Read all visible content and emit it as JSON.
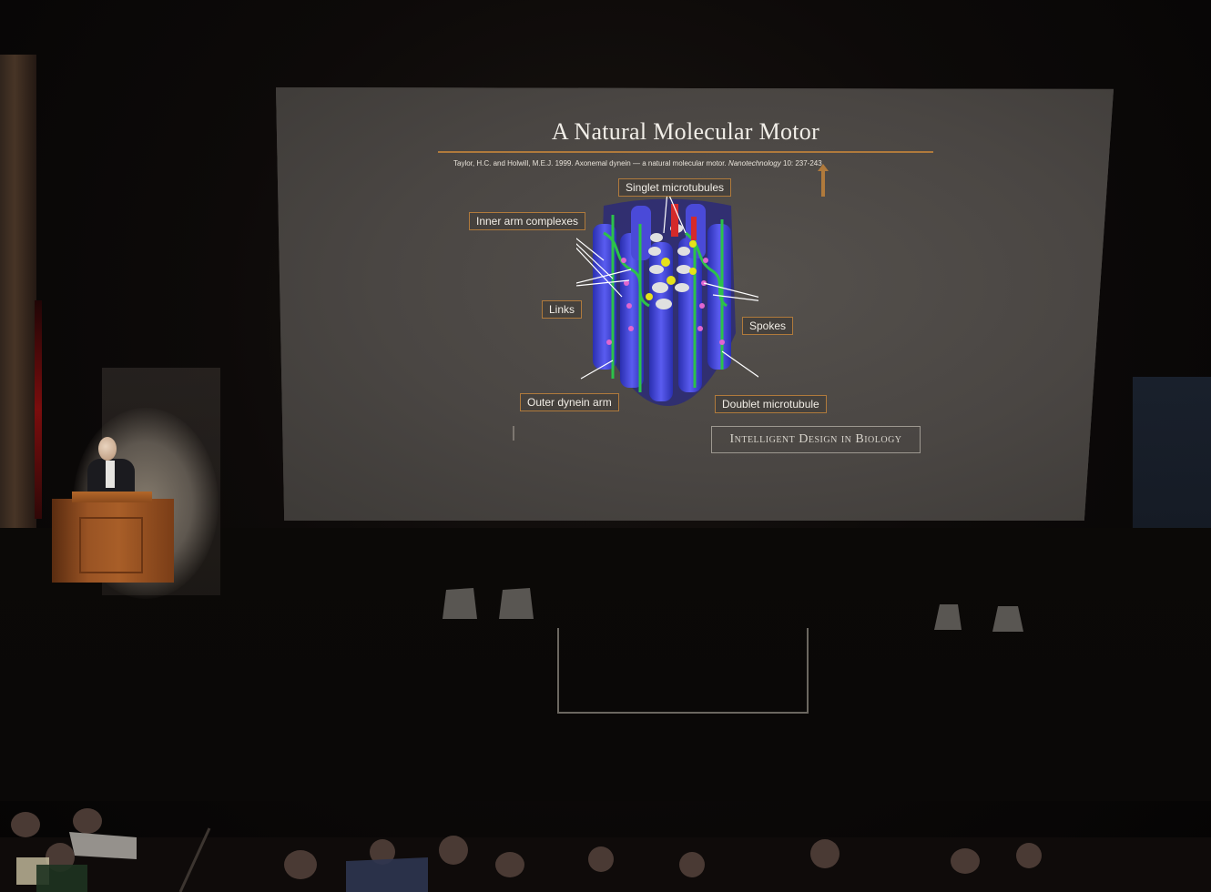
{
  "slide": {
    "title": "A Natural Molecular Motor",
    "citation_main": "Taylor, H.C. and Holwill, M.E.J. 1999. Axonemal dynein — a natural molecular motor.",
    "citation_journal": "Nanotechnology",
    "citation_ref": " 10: 237-243.",
    "labels": {
      "singlet": "Singlet microtubules",
      "inner": "Inner arm complexes",
      "links": "Links",
      "spokes": "Spokes",
      "outer": "Outer dynein arm",
      "doublet": "Doublet microtubule"
    },
    "logo_box": "Intelligent Design in Biology"
  },
  "colors": {
    "accent_rule": "#b07a3c",
    "screen_gray": "#4a4744",
    "podium_wood": "#9a5424"
  },
  "icons": {
    "pointer": "arrow-up-icon"
  }
}
